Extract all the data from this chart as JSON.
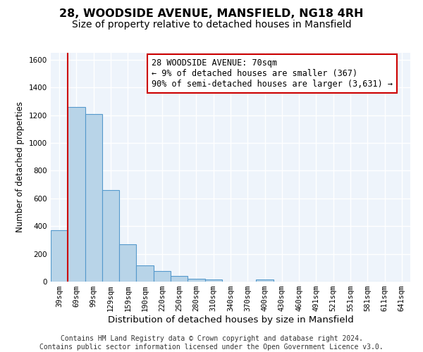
{
  "title": "28, WOODSIDE AVENUE, MANSFIELD, NG18 4RH",
  "subtitle": "Size of property relative to detached houses in Mansfield",
  "xlabel": "Distribution of detached houses by size in Mansfield",
  "ylabel": "Number of detached properties",
  "bar_values": [
    370,
    1260,
    1210,
    660,
    270,
    115,
    75,
    40,
    20,
    15,
    0,
    0,
    15,
    0,
    0,
    0,
    0,
    0,
    0,
    0,
    0
  ],
  "bar_labels": [
    "39sqm",
    "69sqm",
    "99sqm",
    "129sqm",
    "159sqm",
    "190sqm",
    "220sqm",
    "250sqm",
    "280sqm",
    "310sqm",
    "340sqm",
    "370sqm",
    "400sqm",
    "430sqm",
    "460sqm",
    "491sqm",
    "521sqm",
    "551sqm",
    "581sqm",
    "611sqm",
    "641sqm"
  ],
  "bar_color": "#b8d4e8",
  "bar_edge_color": "#5599cc",
  "background_color": "#eef4fb",
  "grid_color": "#ffffff",
  "vline_x_index": 1,
  "vline_color": "#cc0000",
  "annotation_text": "28 WOODSIDE AVENUE: 70sqm\n← 9% of detached houses are smaller (367)\n90% of semi-detached houses are larger (3,631) →",
  "annotation_box_edge": "#cc0000",
  "ylim": [
    0,
    1650
  ],
  "yticks": [
    0,
    200,
    400,
    600,
    800,
    1000,
    1200,
    1400,
    1600
  ],
  "footer_text": "Contains HM Land Registry data © Crown copyright and database right 2024.\nContains public sector information licensed under the Open Government Licence v3.0.",
  "title_fontsize": 11.5,
  "subtitle_fontsize": 10,
  "xlabel_fontsize": 9.5,
  "ylabel_fontsize": 8.5,
  "tick_fontsize": 7.5,
  "annotation_fontsize": 8.5,
  "footer_fontsize": 7
}
